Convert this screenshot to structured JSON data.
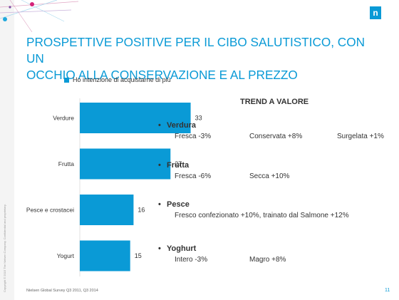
{
  "title_lines": [
    "PROSPETTIVE POSITIVE PER IL CIBO SALUTISTICO, CON UN",
    "OCCHIO ALLA CONSERVAZIONE E AL PREZZO"
  ],
  "logo_letter": "n",
  "chart_data": {
    "type": "bar",
    "orientation": "horizontal",
    "categories": [
      "Verdure",
      "Frutta",
      "Pesce e crostacei",
      "Yogurt"
    ],
    "series": [
      {
        "name": "Ho intenzione di acquistarne di più",
        "values": [
          33,
          27,
          16,
          15
        ]
      }
    ],
    "data_labels": [
      "33",
      "27",
      "16",
      "15"
    ],
    "xlim": [
      0,
      35
    ],
    "grid": false,
    "legend_position": "top",
    "bar_color": "#0a9ad6"
  },
  "trend": {
    "title": "TREND A VALORE",
    "groups": [
      {
        "heading": "Verdura",
        "items": [
          "Fresca -3%",
          "Conservata +8%",
          "Surgelata +1%"
        ]
      },
      {
        "heading": "Frutta",
        "items": [
          "Fresca -6%",
          "Secca +10%"
        ]
      },
      {
        "heading": "Pesce",
        "items": [
          "Fresco confezionato +10%, trainato dal Salmone +12%"
        ]
      },
      {
        "heading": "Yoghurt",
        "items": [
          "Intero -3%",
          "Magro +8%"
        ]
      }
    ]
  },
  "footer": {
    "source": "Nielsen Global Survey Q3 2011, Q3 2014",
    "page_number": "11",
    "copyright": "Copyright © 2015 The Nielsen Company. Confidential and proprietary."
  },
  "colors": {
    "accent": "#0a9ad6",
    "decor_pink": "#d4237a",
    "decor_blue": "#1fa8dc",
    "decor_purple": "#7b4aa0"
  }
}
